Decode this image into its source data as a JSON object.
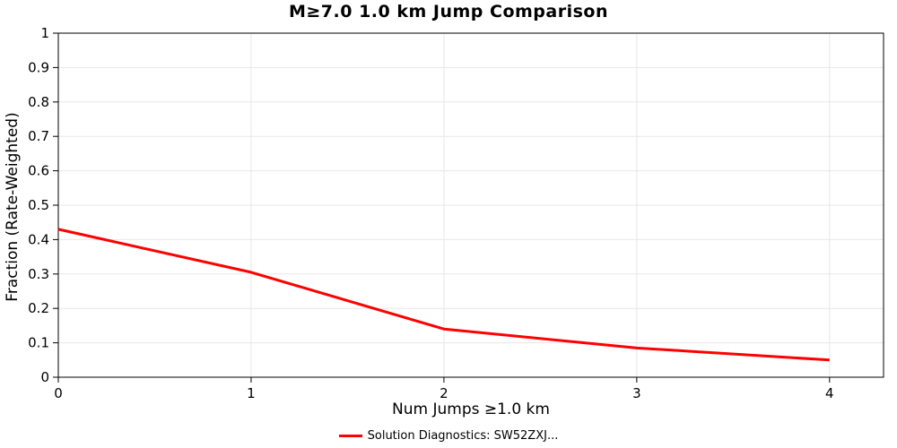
{
  "chart_data": {
    "type": "line",
    "title": "M≥7.0 1.0 km Jump Comparison",
    "xlabel": "Num Jumps ≥1.0 km",
    "ylabel": "Fraction (Rate-Weighted)",
    "x": [
      0,
      1,
      2,
      3,
      4
    ],
    "series": [
      {
        "name": "Solution Diagnostics: SW52ZXJ...",
        "values": [
          0.43,
          0.305,
          0.14,
          0.085,
          0.05
        ],
        "color": "#ff0000"
      }
    ],
    "xlim": [
      0,
      4.28
    ],
    "ylim": [
      0,
      1
    ],
    "x_ticks": [
      0,
      1,
      2,
      3,
      4
    ],
    "y_ticks": [
      0,
      0.1,
      0.2,
      0.3,
      0.4,
      0.5,
      0.6,
      0.7,
      0.8,
      0.9,
      1
    ],
    "grid": true,
    "legend_position": "bottom"
  },
  "colors": {
    "line": "#ff0000",
    "grid": "#e7e7e7",
    "axis": "#000000",
    "tick_label": "#000000",
    "background": "#ffffff"
  }
}
